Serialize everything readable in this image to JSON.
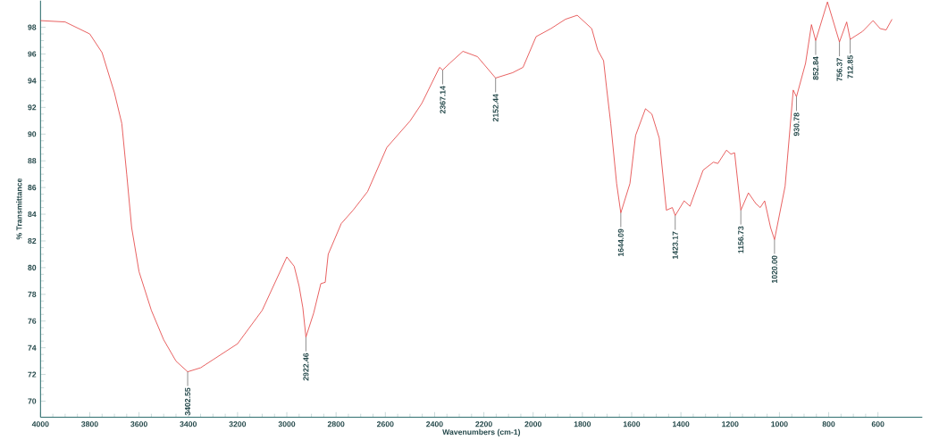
{
  "chart_data": {
    "type": "line",
    "xlabel": "Wavenumbers (cm-1)",
    "ylabel": "% Transmittance",
    "xlim": [
      4000,
      420
    ],
    "ylim": [
      68.8,
      100
    ],
    "xticks": [
      4000,
      3800,
      3600,
      3400,
      3200,
      3000,
      2800,
      2600,
      2400,
      2200,
      2000,
      1800,
      1600,
      1400,
      1200,
      1000,
      800,
      600
    ],
    "yticks": [
      70,
      72,
      74,
      76,
      78,
      80,
      82,
      84,
      86,
      88,
      90,
      92,
      94,
      96,
      98
    ],
    "grid": false,
    "marker": "none",
    "line_style": "solid",
    "series": [
      {
        "color": "#e23a3a",
        "x": [
          4000,
          3900,
          3800,
          3750,
          3700,
          3670,
          3650,
          3630,
          3600,
          3550,
          3500,
          3450,
          3402.55,
          3350,
          3300,
          3200,
          3100,
          3050,
          3000,
          2970,
          2950,
          2935,
          2922.46,
          2891,
          2862,
          2844,
          2832,
          2779,
          2731,
          2672,
          2594,
          2499,
          2452,
          2380,
          2367.14,
          2339,
          2285,
          2226,
          2152.44,
          2083,
          2041,
          1988,
          1928,
          1869,
          1821,
          1762,
          1738,
          1714,
          1702,
          1685,
          1661,
          1644.09,
          1607,
          1584,
          1544,
          1518,
          1488,
          1459,
          1435,
          1423.17,
          1387,
          1363,
          1310,
          1268,
          1250,
          1215,
          1197,
          1182,
          1156.73,
          1126,
          1096,
          1078,
          1060,
          1036,
          1020.0,
          977,
          944,
          930.78,
          894,
          870,
          852.84,
          805,
          756.37,
          727,
          712.85,
          662,
          620,
          591,
          567,
          543
        ],
        "values": [
          98.5,
          98.4,
          97.5,
          96.1,
          93.1,
          90.8,
          87,
          83,
          79.7,
          76.8,
          74.6,
          73,
          72.2,
          72.5,
          73.1,
          74.3,
          76.8,
          78.8,
          80.8,
          80.1,
          78.6,
          77.0,
          74.8,
          76.6,
          78.8,
          78.9,
          81,
          83.3,
          84.3,
          85.7,
          89,
          91,
          92.3,
          95,
          94.8,
          95.3,
          96.2,
          95.8,
          94.2,
          94.6,
          95,
          97.3,
          97.9,
          98.6,
          98.9,
          97.9,
          96.3,
          95.5,
          93.5,
          90.8,
          86.3,
          84.1,
          86.3,
          89.9,
          91.9,
          91.5,
          89.7,
          84.3,
          84.5,
          83.9,
          85,
          84.6,
          87.3,
          87.9,
          87.8,
          88.8,
          88.5,
          88.6,
          84.3,
          85.6,
          84.8,
          84.5,
          85,
          83,
          82.1,
          86.1,
          93.3,
          92.8,
          95.3,
          98.2,
          97,
          99.9,
          96.9,
          98.4,
          97.1,
          97.7,
          98.5,
          97.9,
          97.8,
          98.6
        ]
      }
    ],
    "annotations": [
      {
        "text": "3402.55",
        "x": 3402.55,
        "y": 72.2
      },
      {
        "text": "2922.46",
        "x": 2922.46,
        "y": 74.8
      },
      {
        "text": "2367.14",
        "x": 2367.14,
        "y": 94.8
      },
      {
        "text": "2152.44",
        "x": 2152.44,
        "y": 94.2
      },
      {
        "text": "1644.09",
        "x": 1644.09,
        "y": 84.1
      },
      {
        "text": "1423.17",
        "x": 1423.17,
        "y": 83.9
      },
      {
        "text": "1156.73",
        "x": 1156.73,
        "y": 84.3
      },
      {
        "text": "1020.00",
        "x": 1020.0,
        "y": 82.1
      },
      {
        "text": "930.78",
        "x": 930.78,
        "y": 92.8
      },
      {
        "text": "852.84",
        "x": 852.84,
        "y": 97
      },
      {
        "text": "756.37",
        "x": 756.37,
        "y": 96.9
      },
      {
        "text": "712.85",
        "x": 712.85,
        "y": 97.1
      }
    ]
  }
}
